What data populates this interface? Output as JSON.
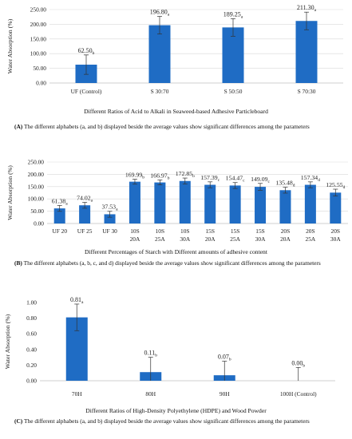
{
  "chart_data": [
    {
      "type": "bar",
      "panel": "A",
      "ylabel": "Water Absorption (%)",
      "xlabel": "Different Ratios of Acid to Alkali in Seaweed-based Adhesive Particleboard",
      "ylim": [
        0,
        250
      ],
      "yticks": [
        "0.00",
        "50.00",
        "100.00",
        "150.00",
        "200.00",
        "250.00"
      ],
      "categories": [
        "UF (Control)",
        "S 30:70",
        "S 50:50",
        "S 70:30"
      ],
      "values": [
        62.5,
        196.8,
        189.25,
        211.3
      ],
      "value_labels": [
        "62.50",
        "196.80",
        "189.25",
        "211.30"
      ],
      "letters": [
        "b",
        "a",
        "a",
        "a"
      ],
      "errors": [
        33,
        30,
        30,
        30
      ],
      "grid": true,
      "bar_color": "#1f6cc4"
    },
    {
      "type": "bar",
      "panel": "B",
      "ylabel": "Water Absorption (%)",
      "xlabel": "Different Percentages of Starch with Different amounts of adhesive content",
      "ylim": [
        0,
        250
      ],
      "yticks": [
        "0.00",
        "50.00",
        "100.00",
        "150.00",
        "200.00",
        "250.00"
      ],
      "categories": [
        [
          "UF 20"
        ],
        [
          "UF 25"
        ],
        [
          "UF 30"
        ],
        [
          "10S",
          "20A"
        ],
        [
          "10S",
          "25A"
        ],
        [
          "10S",
          "30A"
        ],
        [
          "15S",
          "20A"
        ],
        [
          "15S",
          "25A"
        ],
        [
          "15S",
          "30A"
        ],
        [
          "20S",
          "20A"
        ],
        [
          "20S",
          "25A"
        ],
        [
          "20S",
          "30A"
        ]
      ],
      "values": [
        61.38,
        74.02,
        37.53,
        169.99,
        166.97,
        172.85,
        157.39,
        154.47,
        149.09,
        135.48,
        157.34,
        125.55
      ],
      "value_labels": [
        "61.38",
        "74.02",
        "37.53",
        "169.99",
        "166.97",
        "172.85",
        "157.39",
        "154.47",
        "149.09",
        "135.48",
        "157.34",
        "125.55"
      ],
      "letters": [
        "a",
        "a",
        "a",
        "b",
        "b",
        "b",
        "c",
        "c",
        "c",
        "d",
        "d",
        "d"
      ],
      "errors": [
        12,
        12,
        12,
        10,
        10,
        12,
        12,
        12,
        14,
        12,
        12,
        14
      ],
      "grid": true,
      "bar_color": "#1f6cc4"
    },
    {
      "type": "bar",
      "panel": "C",
      "ylabel": "Water Absorption (%)",
      "xlabel": "Different Ratios of High-Density Polyethylene (HDPE) and Wood Powder",
      "ylim": [
        0,
        1
      ],
      "yticks": [
        "0.00",
        "0.20",
        "0.40",
        "0.60",
        "0.80",
        "1.00"
      ],
      "categories": [
        "70H",
        "80H",
        "90H",
        "100H (Control)"
      ],
      "values": [
        0.81,
        0.11,
        0.07,
        0.0
      ],
      "value_labels": [
        "0.81",
        "0.11",
        "0.07",
        "0.00"
      ],
      "letters": [
        "a",
        "b",
        "b",
        "b"
      ],
      "errors": [
        0.17,
        0.19,
        0.18,
        0.17
      ],
      "grid": false,
      "bar_color": "#1f6cc4"
    }
  ],
  "captions": {
    "a": {
      "letter": "(A)",
      "text": "The different alphabets (a, and b) displayed beside the average values show significant differences among the parameters"
    },
    "b": {
      "letter": "(B)",
      "text": "The different alphabets (a, b, c, and d) displayed beside the average values show significant differences among the parameters"
    },
    "c": {
      "letter": "(C)",
      "text": "The different alphabets (a, and b) displayed beside the average values show significant differences among the parameters"
    }
  }
}
